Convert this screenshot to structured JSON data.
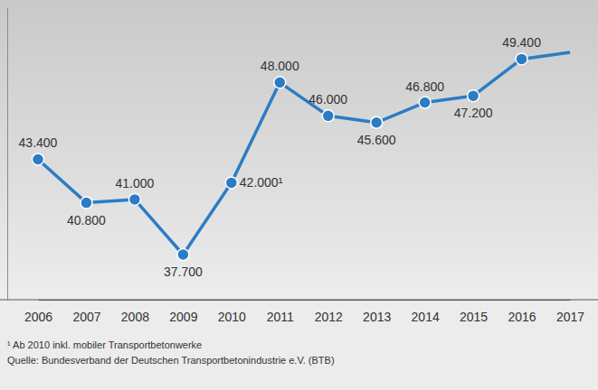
{
  "chart_data": {
    "type": "line",
    "categories": [
      "2006",
      "2007",
      "2008",
      "2009",
      "2010",
      "2011",
      "2012",
      "2013",
      "2014",
      "2015",
      "2016",
      "2017"
    ],
    "values": [
      43400,
      40800,
      41000,
      37700,
      42000,
      48000,
      46000,
      45600,
      46800,
      47200,
      49400,
      49800
    ],
    "value_labels": [
      "43.400",
      "40.800",
      "41.000",
      "37.700",
      "42.000¹",
      "48.000",
      "46.000",
      "45.600",
      "46.800",
      "47.200",
      "49.400",
      null
    ],
    "data_labels": true,
    "color": "#2b7cc4",
    "marker": "circle",
    "line_style": "solid",
    "ylim": [
      35000,
      52500
    ],
    "yticks": [],
    "tick_labels": "x",
    "grid": false,
    "notes": [
      "¹ Ab 2010 inkl. mobiler Transportbetonwerke"
    ],
    "source": "Quelle: Bundesverband der Deutschen Transportbetonindustrie e.V. (BTB)"
  }
}
